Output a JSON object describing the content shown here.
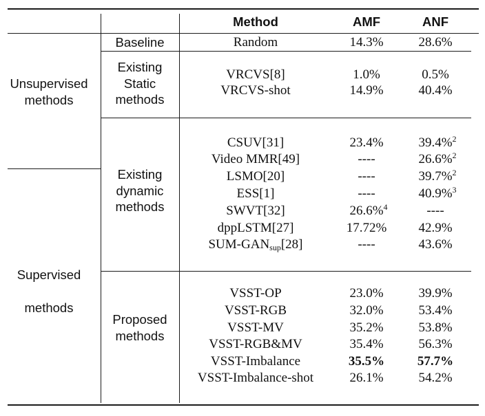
{
  "header": {
    "method": "Method",
    "amf": "AMF",
    "anf": "ANF"
  },
  "groups": {
    "unsupervised": [
      "Unsupervised",
      "methods"
    ],
    "supervised": [
      "Supervised",
      "methods"
    ]
  },
  "categories": {
    "baseline": "Baseline",
    "static": [
      "Existing",
      "Static",
      "methods"
    ],
    "dynamic": [
      "Existing",
      "dynamic",
      "methods"
    ],
    "proposed": [
      "Proposed",
      "methods"
    ]
  },
  "rows": {
    "random": {
      "method": "Random",
      "amf": "14.3%",
      "anf": "28.6%"
    },
    "vrcvs": {
      "method": "VRCVS[8]",
      "amf": "1.0%",
      "anf": "0.5%"
    },
    "vrcvs_shot": {
      "method": "VRCVS-shot",
      "amf": "14.9%",
      "anf": "40.4%"
    },
    "csuv": {
      "method": "CSUV[31]",
      "amf": "23.4%",
      "anf": "39.4%",
      "anf_sup": "2"
    },
    "video_mmr": {
      "method": "Video MMR[49]",
      "amf": "----",
      "anf": "26.6%",
      "anf_sup": "2"
    },
    "lsmo": {
      "method": "LSMO[20]",
      "amf": "----",
      "anf": "39.7%",
      "anf_sup": "2"
    },
    "ess": {
      "method": "ESS[1]",
      "amf": "----",
      "anf": "40.9%",
      "anf_sup": "3"
    },
    "swvt": {
      "method": "SWVT[32]",
      "amf": "26.6%",
      "amf_sup": "4",
      "anf": "----"
    },
    "dpplstm": {
      "method": "dppLSTM[27]",
      "amf": "17.72%",
      "anf": "42.9%"
    },
    "sumgan": {
      "method_main": "SUM-GAN",
      "method_sub": "sup",
      "method_ref": "[28]",
      "amf": "----",
      "anf": "43.6%"
    },
    "vsst_op": {
      "method": "VSST-OP",
      "amf": "23.0%",
      "anf": "39.9%"
    },
    "vsst_rgb": {
      "method": "VSST-RGB",
      "amf": "32.0%",
      "anf": "53.4%"
    },
    "vsst_mv": {
      "method": "VSST-MV",
      "amf": "35.2%",
      "anf": "53.8%"
    },
    "vsst_rgbmv": {
      "method": "VSST-RGB&MV",
      "amf": "35.4%",
      "anf": "56.3%"
    },
    "vsst_imb": {
      "method": "VSST-Imbalance",
      "amf": "35.5%",
      "anf": "57.7%"
    },
    "vsst_imb_shot": {
      "method": "VSST-Imbalance-shot",
      "amf": "26.1%",
      "anf": "54.2%"
    }
  }
}
